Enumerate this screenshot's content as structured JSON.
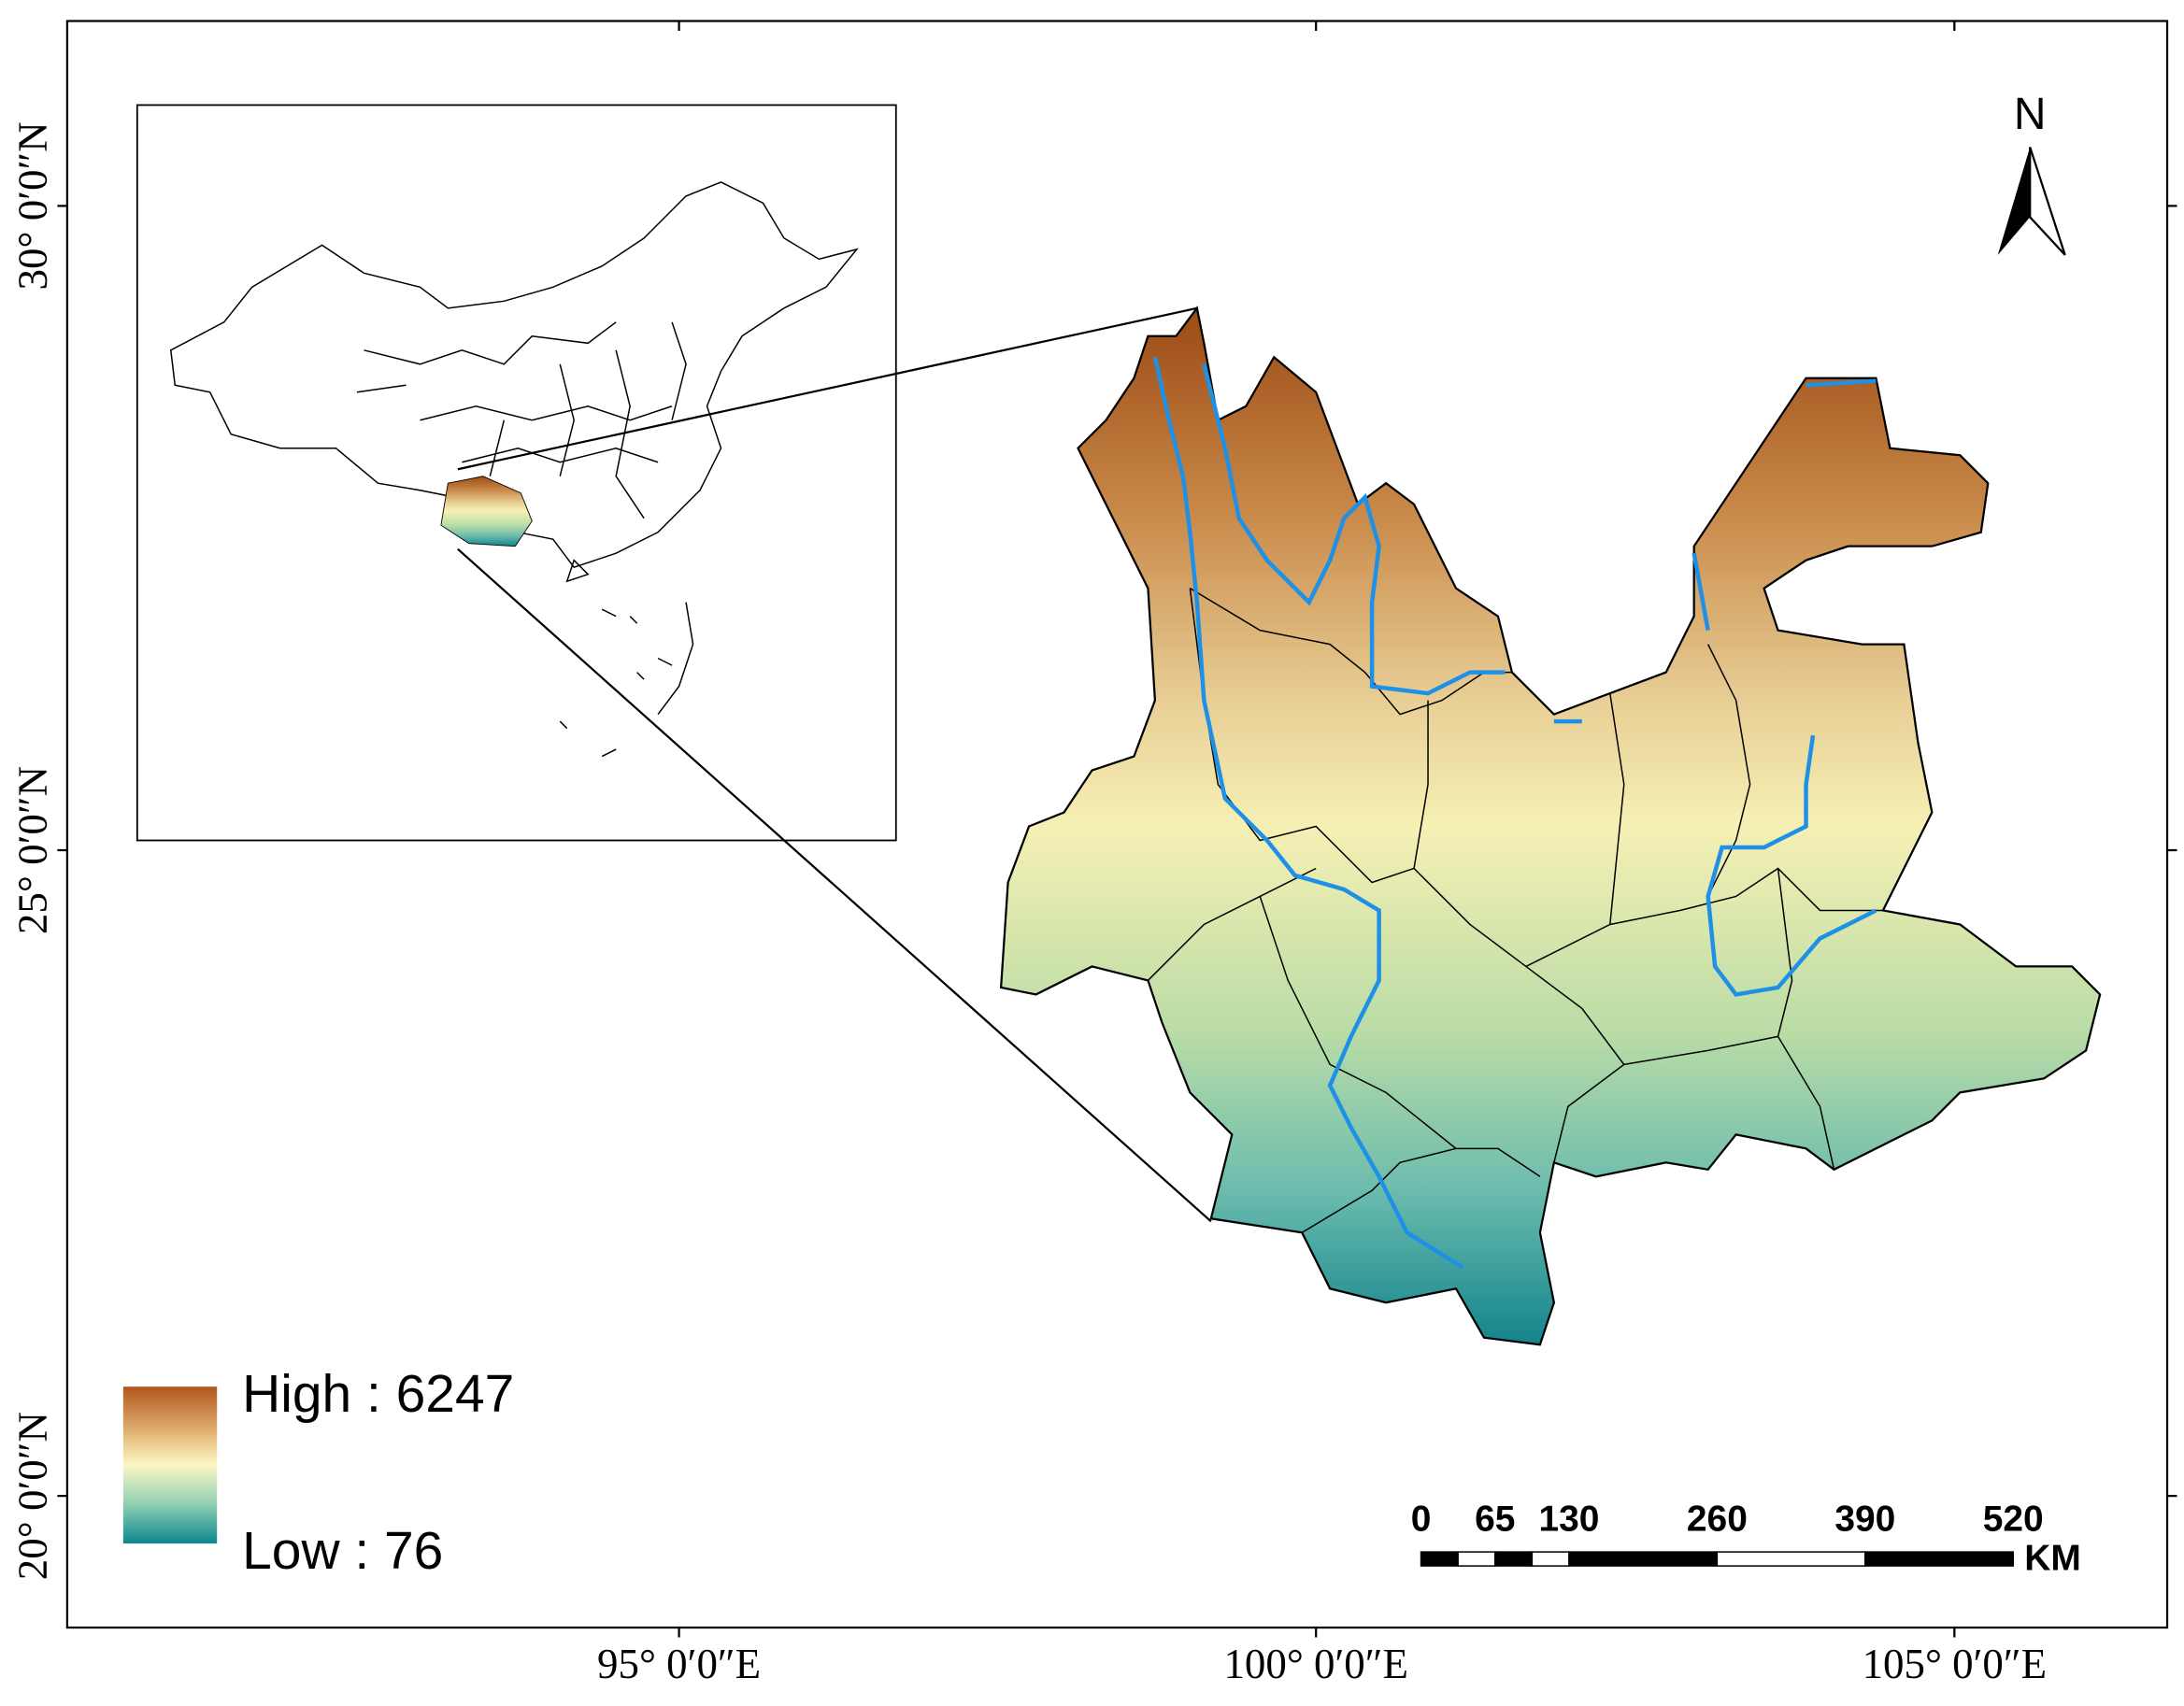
{
  "map": {
    "longitude_labels": [
      "95° 0′0″E",
      "100° 0′0″E",
      "105° 0′0″E"
    ],
    "latitude_labels": [
      "30° 0′0″N",
      "25° 0′0″N",
      "20° 0′0″N"
    ],
    "legend": {
      "high": "High : 6247",
      "low": "Low : 76"
    },
    "scale_bar": {
      "ticks": [
        0,
        65,
        130,
        260,
        390,
        520
      ],
      "unit": "KM"
    },
    "north": "N"
  }
}
